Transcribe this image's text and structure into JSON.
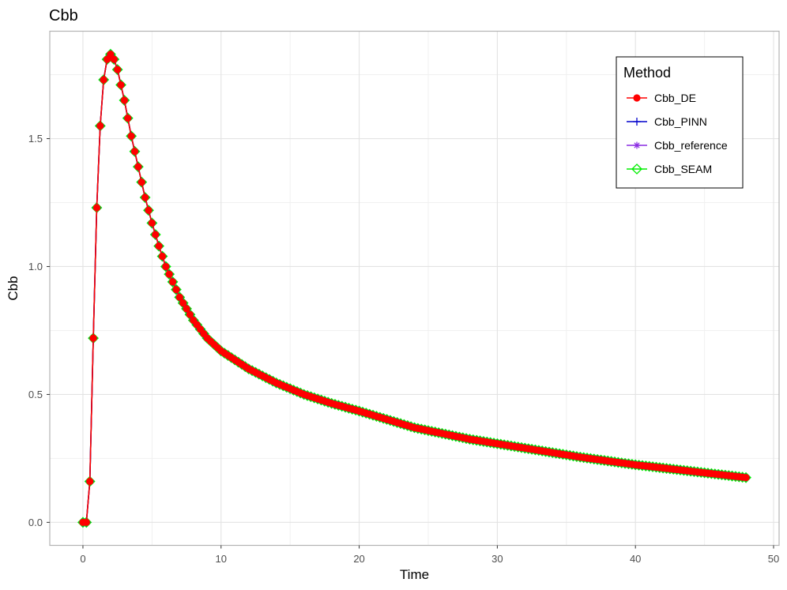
{
  "chart_data": {
    "type": "line",
    "title": "Cbb",
    "xlabel": "Time",
    "ylabel": "Cbb",
    "xlim": [
      -2.4,
      50.4
    ],
    "ylim": [
      -0.09,
      1.92
    ],
    "xticks": [
      0,
      10,
      20,
      30,
      40,
      50
    ],
    "xtick_labels": [
      "0",
      "10",
      "20",
      "30",
      "40",
      "50"
    ],
    "yticks": [
      0.0,
      0.5,
      1.0,
      1.5
    ],
    "ytick_labels": [
      "0.0",
      "0.5",
      "1.0",
      "1.5"
    ],
    "grid": true,
    "legend": {
      "title": "Method",
      "position": "top-right"
    },
    "x": [
      0,
      0.25,
      0.5,
      0.75,
      1,
      1.25,
      1.5,
      1.75,
      2,
      2.25,
      2.5,
      2.75,
      3,
      3.5,
      4,
      4.5,
      5,
      5.5,
      6,
      7,
      8,
      9,
      10,
      12,
      14,
      16,
      18,
      20,
      24,
      28,
      32,
      36,
      40,
      44,
      48
    ],
    "series": [
      {
        "name": "Cbb_DE",
        "color": "#ff0000",
        "marker": "circle",
        "values": [
          0,
          0,
          0.16,
          0.72,
          1.23,
          1.55,
          1.73,
          1.81,
          1.83,
          1.81,
          1.77,
          1.71,
          1.65,
          1.51,
          1.39,
          1.27,
          1.17,
          1.08,
          1.0,
          0.88,
          0.79,
          0.72,
          0.67,
          0.6,
          0.545,
          0.5,
          0.465,
          0.435,
          0.37,
          0.325,
          0.29,
          0.255,
          0.225,
          0.2,
          0.175
        ]
      },
      {
        "name": "Cbb_PINN",
        "color": "#0000cc",
        "marker": "plus",
        "values": [
          0,
          0,
          0.16,
          0.72,
          1.23,
          1.55,
          1.73,
          1.81,
          1.83,
          1.81,
          1.77,
          1.71,
          1.65,
          1.51,
          1.39,
          1.27,
          1.17,
          1.08,
          1.0,
          0.88,
          0.79,
          0.72,
          0.67,
          0.6,
          0.545,
          0.5,
          0.465,
          0.435,
          0.37,
          0.325,
          0.29,
          0.255,
          0.225,
          0.2,
          0.175
        ]
      },
      {
        "name": "Cbb_reference",
        "color": "#8a2be2",
        "marker": "asterisk",
        "values": [
          0,
          0,
          0.16,
          0.72,
          1.23,
          1.55,
          1.73,
          1.81,
          1.83,
          1.81,
          1.77,
          1.71,
          1.65,
          1.51,
          1.39,
          1.27,
          1.17,
          1.08,
          1.0,
          0.88,
          0.79,
          0.72,
          0.67,
          0.6,
          0.545,
          0.5,
          0.465,
          0.435,
          0.37,
          0.325,
          0.29,
          0.255,
          0.225,
          0.2,
          0.175
        ]
      },
      {
        "name": "Cbb_SEAM",
        "color": "#00ee00",
        "marker": "diamond",
        "values": [
          0,
          0,
          0.16,
          0.72,
          1.23,
          1.55,
          1.73,
          1.81,
          1.83,
          1.81,
          1.77,
          1.71,
          1.65,
          1.51,
          1.39,
          1.27,
          1.17,
          1.08,
          1.0,
          0.88,
          0.79,
          0.72,
          0.67,
          0.6,
          0.545,
          0.5,
          0.465,
          0.435,
          0.37,
          0.325,
          0.29,
          0.255,
          0.225,
          0.2,
          0.175
        ]
      }
    ]
  }
}
